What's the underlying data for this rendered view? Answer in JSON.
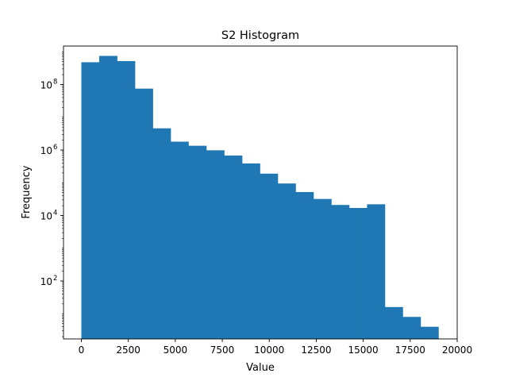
{
  "chart_data": {
    "type": "bar",
    "title": "S2 Histogram",
    "xlabel": "Value",
    "ylabel": "Frequency",
    "yscale": "log",
    "xlim": [
      -950,
      20000
    ],
    "ylim": [
      1.7,
      1500000000
    ],
    "bin_edges": [
      0,
      950,
      1900,
      2850,
      3800,
      4750,
      5700,
      6650,
      7600,
      8550,
      9500,
      10450,
      11400,
      12350,
      13300,
      14250,
      15200,
      16150,
      17100,
      18050,
      19000
    ],
    "counts": [
      480000000,
      750000000,
      520000000,
      75000000,
      4600000,
      1800000,
      1350000,
      980000,
      680000,
      390000,
      190000,
      95000,
      52000,
      32000,
      21000,
      17000,
      22000,
      16,
      8,
      4
    ],
    "xticks": [
      0,
      2500,
      5000,
      7500,
      10000,
      12500,
      15000,
      17500,
      20000
    ],
    "xtick_labels": [
      "0",
      "2500",
      "5000",
      "7500",
      "10000",
      "12500",
      "15000",
      "17500",
      "20000"
    ],
    "yticks": [
      100,
      10000,
      1000000,
      100000000
    ],
    "ytick_labels": [
      {
        "base": "10",
        "exp": "2"
      },
      {
        "base": "10",
        "exp": "4"
      },
      {
        "base": "10",
        "exp": "6"
      },
      {
        "base": "10",
        "exp": "8"
      }
    ],
    "bar_color": "#1f77b4",
    "grid": false,
    "legend": "none"
  }
}
